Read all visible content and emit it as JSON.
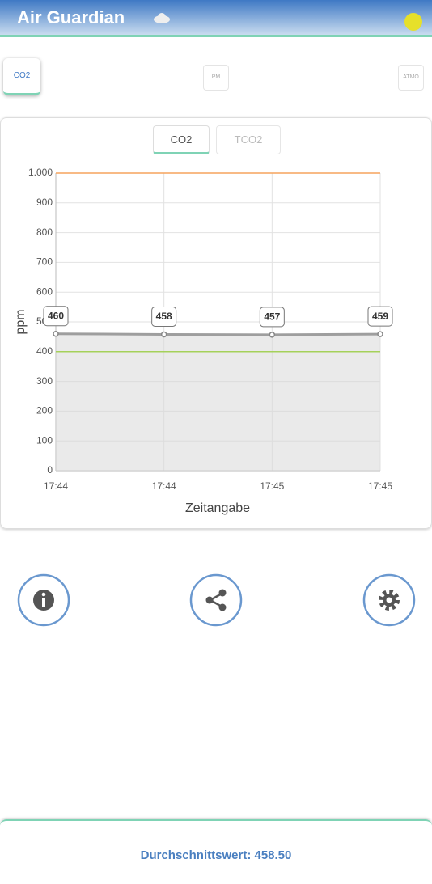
{
  "header": {
    "title": "Air Guardian"
  },
  "sensor_tabs": [
    "CO2",
    "PM",
    "ATMO"
  ],
  "chart_tabs": [
    "CO2",
    "TCO2"
  ],
  "chart_data": {
    "type": "line",
    "categories": [
      "17:44",
      "17:44",
      "17:45",
      "17:45"
    ],
    "series": [
      {
        "color": "#9e9e9e",
        "values": [
          460,
          458,
          457,
          459
        ]
      }
    ],
    "x_label": "Zeitangabe",
    "y_label": "ppm",
    "ylim": [
      0,
      1000
    ],
    "yticks": [
      0,
      100,
      200,
      300,
      400,
      500,
      600,
      700,
      800,
      900,
      {
        "value": 1000,
        "label": "1.000"
      }
    ],
    "reference_lines": [
      {
        "value": 1000,
        "color": "#f5a45d"
      },
      {
        "value": 400,
        "color": "#a5d15a"
      }
    ],
    "grid": true
  },
  "footer": {
    "text": "Durchschnittswert: 458.50"
  }
}
